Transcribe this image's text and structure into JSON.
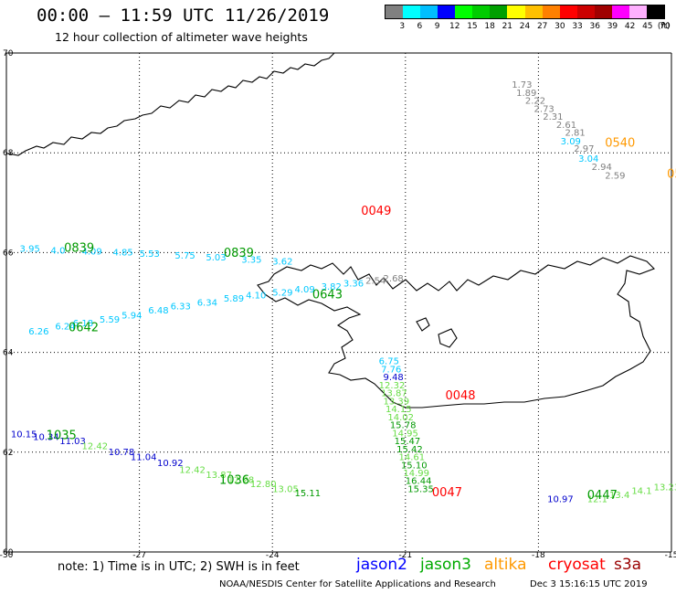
{
  "header": {
    "title": "00:00 – 11:59 UTC 11/26/2019",
    "subtitle": "12 hour collection of altimeter wave heights"
  },
  "legend": {
    "unit": "(ft)",
    "colors": [
      "#808080",
      "#00ffff",
      "#00bfff",
      "#0000ff",
      "#00ff00",
      "#00cc00",
      "#00a000",
      "#ffff00",
      "#ffc000",
      "#ff8000",
      "#ff0000",
      "#cc0000",
      "#a00000",
      "#ff00ff",
      "#ffb0ff",
      "#000000"
    ],
    "labels": [
      "3",
      "6",
      "9",
      "12",
      "15",
      "18",
      "21",
      "24",
      "27",
      "30",
      "33",
      "36",
      "39",
      "42",
      "45",
      "70"
    ]
  },
  "map": {
    "lon_ticks": [
      "-30",
      "-27",
      "-24",
      "-21",
      "-18",
      "-15"
    ],
    "lat_ticks": [
      "70",
      "68",
      "66",
      "64",
      "62",
      "60"
    ]
  },
  "tracks": [
    {
      "name": "track-altika-upper",
      "points": [
        {
          "lon": -18.6,
          "lat": 69.3,
          "v": "1.73",
          "c": "#808080"
        },
        {
          "lon": -18.5,
          "lat": 69.14,
          "v": "1.89",
          "c": "#808080"
        },
        {
          "lon": -18.3,
          "lat": 68.98,
          "v": "2.22",
          "c": "#808080"
        },
        {
          "lon": -18.1,
          "lat": 68.82,
          "v": "2.73",
          "c": "#808080"
        },
        {
          "lon": -17.9,
          "lat": 68.66,
          "v": "2.31",
          "c": "#808080"
        },
        {
          "lon": -17.6,
          "lat": 68.5,
          "v": "2.61",
          "c": "#808080"
        },
        {
          "lon": -17.4,
          "lat": 68.34,
          "v": "2.81",
          "c": "#808080"
        },
        {
          "lon": -17.5,
          "lat": 68.17,
          "v": "3.09",
          "c": "#00c8ff"
        },
        {
          "lon": -17.2,
          "lat": 68.02,
          "v": "2.97",
          "c": "#808080"
        },
        {
          "lon": -17.1,
          "lat": 67.82,
          "v": "3.04",
          "c": "#00c8ff"
        },
        {
          "lon": -16.8,
          "lat": 67.66,
          "v": "2.94",
          "c": "#808080"
        },
        {
          "lon": -16.5,
          "lat": 67.48,
          "v": "2.59",
          "c": "#808080"
        }
      ]
    },
    {
      "name": "track-jason3-north",
      "points": [
        {
          "lon": -29.7,
          "lat": 66.02,
          "v": "3.95",
          "c": "#00c8ff"
        },
        {
          "lon": -29.0,
          "lat": 65.98,
          "v": "4.0",
          "c": "#00c8ff"
        },
        {
          "lon": -28.3,
          "lat": 65.96,
          "v": "4.09",
          "c": "#00c8ff"
        },
        {
          "lon": -27.6,
          "lat": 65.94,
          "v": "4.85",
          "c": "#00c8ff"
        },
        {
          "lon": -27.0,
          "lat": 65.92,
          "v": "5.53",
          "c": "#00c8ff"
        },
        {
          "lon": -26.2,
          "lat": 65.88,
          "v": "5.75",
          "c": "#00c8ff"
        },
        {
          "lon": -25.5,
          "lat": 65.84,
          "v": "5.03",
          "c": "#00c8ff"
        },
        {
          "lon": -24.7,
          "lat": 65.8,
          "v": "3.35",
          "c": "#00c8ff"
        },
        {
          "lon": -24.0,
          "lat": 65.76,
          "v": "3.62",
          "c": "#00c8ff"
        }
      ]
    },
    {
      "name": "track-jason3-west",
      "points": [
        {
          "lon": -29.5,
          "lat": 64.36,
          "v": "6.26",
          "c": "#00c8ff"
        },
        {
          "lon": -28.9,
          "lat": 64.46,
          "v": "6.24",
          "c": "#00c8ff"
        },
        {
          "lon": -28.5,
          "lat": 64.52,
          "v": "6.18",
          "c": "#00c8ff"
        },
        {
          "lon": -27.9,
          "lat": 64.6,
          "v": "5.59",
          "c": "#00c8ff"
        },
        {
          "lon": -27.4,
          "lat": 64.68,
          "v": "5.94",
          "c": "#00c8ff"
        },
        {
          "lon": -26.8,
          "lat": 64.78,
          "v": "6.48",
          "c": "#00c8ff"
        },
        {
          "lon": -26.3,
          "lat": 64.86,
          "v": "6.33",
          "c": "#00c8ff"
        },
        {
          "lon": -25.7,
          "lat": 64.94,
          "v": "6.34",
          "c": "#00c8ff"
        },
        {
          "lon": -25.1,
          "lat": 65.02,
          "v": "5.89",
          "c": "#00c8ff"
        },
        {
          "lon": -24.6,
          "lat": 65.08,
          "v": "4.10",
          "c": "#00c8ff"
        },
        {
          "lon": -24.0,
          "lat": 65.14,
          "v": "5.29",
          "c": "#00c8ff"
        },
        {
          "lon": -23.5,
          "lat": 65.2,
          "v": "4.09",
          "c": "#00c8ff"
        },
        {
          "lon": -22.9,
          "lat": 65.26,
          "v": "3.82",
          "c": "#00c8ff"
        },
        {
          "lon": -22.4,
          "lat": 65.32,
          "v": "3.36",
          "c": "#00c8ff"
        },
        {
          "lon": -21.9,
          "lat": 65.38,
          "v": "2.54",
          "c": "#808080"
        },
        {
          "lon": -21.5,
          "lat": 65.42,
          "v": "2.68",
          "c": "#808080"
        }
      ]
    },
    {
      "name": "track-jason3-south",
      "points": [
        {
          "lon": -21.6,
          "lat": 63.76,
          "v": "6.75",
          "c": "#00c8ff"
        },
        {
          "lon": -21.55,
          "lat": 63.6,
          "v": "7.76",
          "c": "#00c8ff"
        },
        {
          "lon": -21.5,
          "lat": 63.44,
          "v": "9.48",
          "c": "#0000cc"
        },
        {
          "lon": -21.6,
          "lat": 63.28,
          "v": "12.32",
          "c": "#66dd44"
        },
        {
          "lon": -21.55,
          "lat": 63.12,
          "v": "13.87",
          "c": "#66dd44"
        },
        {
          "lon": -21.5,
          "lat": 62.96,
          "v": "13.39",
          "c": "#66dd44"
        },
        {
          "lon": -21.45,
          "lat": 62.8,
          "v": "14.15",
          "c": "#66dd44"
        },
        {
          "lon": -21.4,
          "lat": 62.64,
          "v": "14.02",
          "c": "#66dd44"
        },
        {
          "lon": -21.35,
          "lat": 62.48,
          "v": "15.78",
          "c": "#009900"
        },
        {
          "lon": -21.3,
          "lat": 62.32,
          "v": "14.95",
          "c": "#66dd44"
        },
        {
          "lon": -21.25,
          "lat": 62.16,
          "v": "15.47",
          "c": "#009900"
        },
        {
          "lon": -21.2,
          "lat": 62.0,
          "v": "15.42",
          "c": "#009900"
        },
        {
          "lon": -21.15,
          "lat": 61.84,
          "v": "14.61",
          "c": "#66dd44"
        },
        {
          "lon": -21.1,
          "lat": 61.68,
          "v": "15.10",
          "c": "#009900"
        },
        {
          "lon": -21.05,
          "lat": 61.52,
          "v": "14.99",
          "c": "#66dd44"
        },
        {
          "lon": -21.0,
          "lat": 61.36,
          "v": "16.44",
          "c": "#009900"
        },
        {
          "lon": -20.95,
          "lat": 61.2,
          "v": "15.35",
          "c": "#009900"
        }
      ]
    },
    {
      "name": "track-jason2-southwest",
      "points": [
        {
          "lon": -29.9,
          "lat": 62.3,
          "v": "10.15",
          "c": "#0000cc"
        },
        {
          "lon": -29.4,
          "lat": 62.24,
          "v": "10.34",
          "c": "#0000cc"
        },
        {
          "lon": -28.8,
          "lat": 62.16,
          "v": "11.03",
          "c": "#0000cc"
        },
        {
          "lon": -28.3,
          "lat": 62.06,
          "v": "12.42",
          "c": "#66dd44"
        },
        {
          "lon": -27.7,
          "lat": 61.94,
          "v": "10.78",
          "c": "#0000cc"
        },
        {
          "lon": -27.2,
          "lat": 61.84,
          "v": "11.04",
          "c": "#0000cc"
        },
        {
          "lon": -26.6,
          "lat": 61.72,
          "v": "10.92",
          "c": "#0000cc"
        },
        {
          "lon": -26.1,
          "lat": 61.58,
          "v": "12.42",
          "c": "#66dd44"
        },
        {
          "lon": -25.5,
          "lat": 61.48,
          "v": "13.87",
          "c": "#66dd44"
        },
        {
          "lon": -25.0,
          "lat": 61.38,
          "v": "12.28",
          "c": "#66dd44"
        },
        {
          "lon": -24.5,
          "lat": 61.3,
          "v": "12.80",
          "c": "#66dd44"
        },
        {
          "lon": -24.0,
          "lat": 61.2,
          "v": "13.05",
          "c": "#66dd44"
        },
        {
          "lon": -23.5,
          "lat": 61.12,
          "v": "15.11",
          "c": "#009900"
        }
      ]
    },
    {
      "name": "track-southeast",
      "points": [
        {
          "lon": -17.8,
          "lat": 61.0,
          "v": "10.97",
          "c": "#0000cc"
        },
        {
          "lon": -16.9,
          "lat": 61.0,
          "v": "12.1",
          "c": "#66dd44"
        },
        {
          "lon": -16.4,
          "lat": 61.08,
          "v": "13.4",
          "c": "#66dd44"
        },
        {
          "lon": -15.9,
          "lat": 61.16,
          "v": "14.1",
          "c": "#66dd44"
        },
        {
          "lon": -15.4,
          "lat": 61.24,
          "v": "13.23",
          "c": "#66dd44"
        },
        {
          "lon": -14.9,
          "lat": 61.32,
          "v": "14.1",
          "c": "#66dd44"
        },
        {
          "lon": -14.4,
          "lat": 61.4,
          "v": "13.13",
          "c": "#66dd44"
        }
      ]
    }
  ],
  "time_labels": [
    {
      "lon": -28.7,
      "lat": 66.02,
      "t": "0839",
      "c": "#009900"
    },
    {
      "lon": -25.1,
      "lat": 65.92,
      "t": "0839",
      "c": "#009900"
    },
    {
      "lon": -23.1,
      "lat": 65.08,
      "t": "0643",
      "c": "#009900"
    },
    {
      "lon": -28.6,
      "lat": 64.42,
      "t": "0642",
      "c": "#009900"
    },
    {
      "lon": -22.0,
      "lat": 66.76,
      "t": "0049",
      "c": "#ff0000"
    },
    {
      "lon": -16.5,
      "lat": 68.12,
      "t": "0540",
      "c": "#ff9900"
    },
    {
      "lon": -15.1,
      "lat": 67.5,
      "t": "05",
      "c": "#ff9900"
    },
    {
      "lon": -20.1,
      "lat": 63.06,
      "t": "0048",
      "c": "#ff0000"
    },
    {
      "lon": -20.4,
      "lat": 61.12,
      "t": "0047",
      "c": "#ff0000"
    },
    {
      "lon": -29.1,
      "lat": 62.26,
      "t": "1035",
      "c": "#009900"
    },
    {
      "lon": -25.2,
      "lat": 61.36,
      "t": "1036",
      "c": "#009900"
    },
    {
      "lon": -16.9,
      "lat": 61.06,
      "t": "0447",
      "c": "#009900"
    }
  ],
  "footer": {
    "note": "note: 1) Time is in UTC; 2) SWH is in feet",
    "satellites": [
      {
        "name": "jason2",
        "color": "#0000ff"
      },
      {
        "name": "jason3",
        "color": "#00aa00"
      },
      {
        "name": "altika",
        "color": "#ff9900"
      },
      {
        "name": "cryosat",
        "color": "#ff0000"
      },
      {
        "name": "s3a",
        "color": "#990000"
      }
    ],
    "credit": "NOAA/NESDIS Center for Satellite Applications and Research",
    "generated": "Dec  3 15:16:15 UTC 2019"
  }
}
